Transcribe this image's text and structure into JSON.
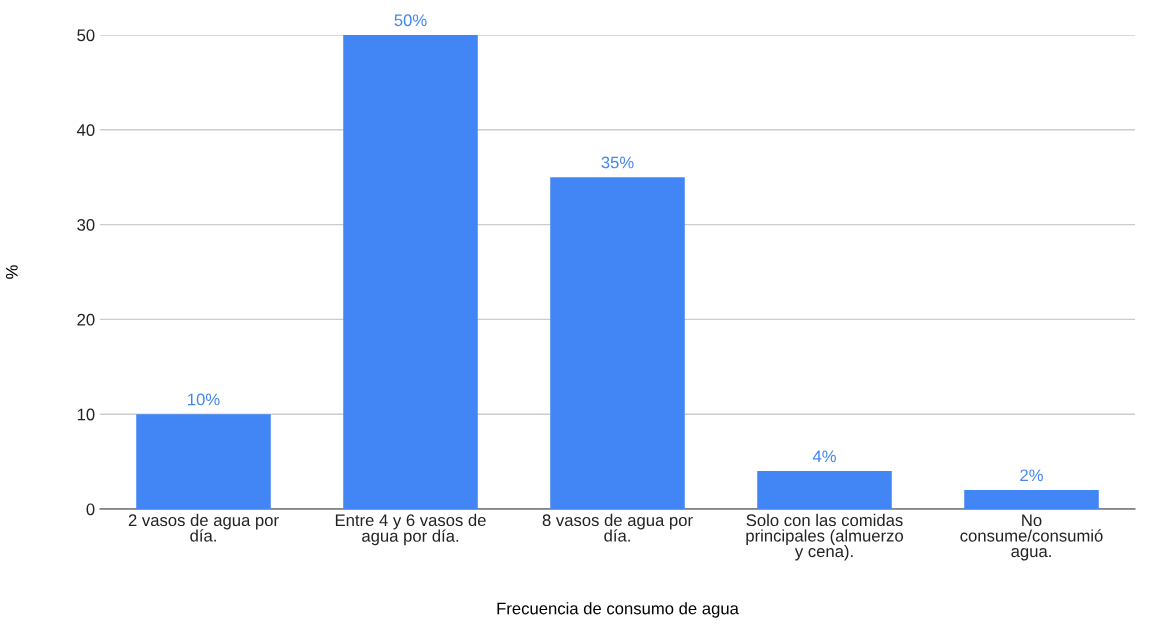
{
  "chart_data": {
    "type": "bar",
    "xlabel": "Frecuencia de consumo de agua",
    "ylabel": "%",
    "categories": [
      "2 vasos de agua por\ndía.",
      "Entre 4 y 6 vasos de\nagua por día.",
      "8 vasos de agua por\ndía.",
      "Solo con las comidas\nprincipales (almuerzo\ny cena).",
      "No\nconsume/consumió\nagua."
    ],
    "values": [
      10,
      50,
      35,
      4,
      2
    ],
    "value_labels": [
      "10%",
      "50%",
      "35%",
      "4%",
      "2%"
    ],
    "color": "#4285f4",
    "ylim": [
      0,
      50
    ],
    "yticks": [
      0,
      10,
      20,
      30,
      40,
      50
    ],
    "grid": "y",
    "legend": false
  }
}
